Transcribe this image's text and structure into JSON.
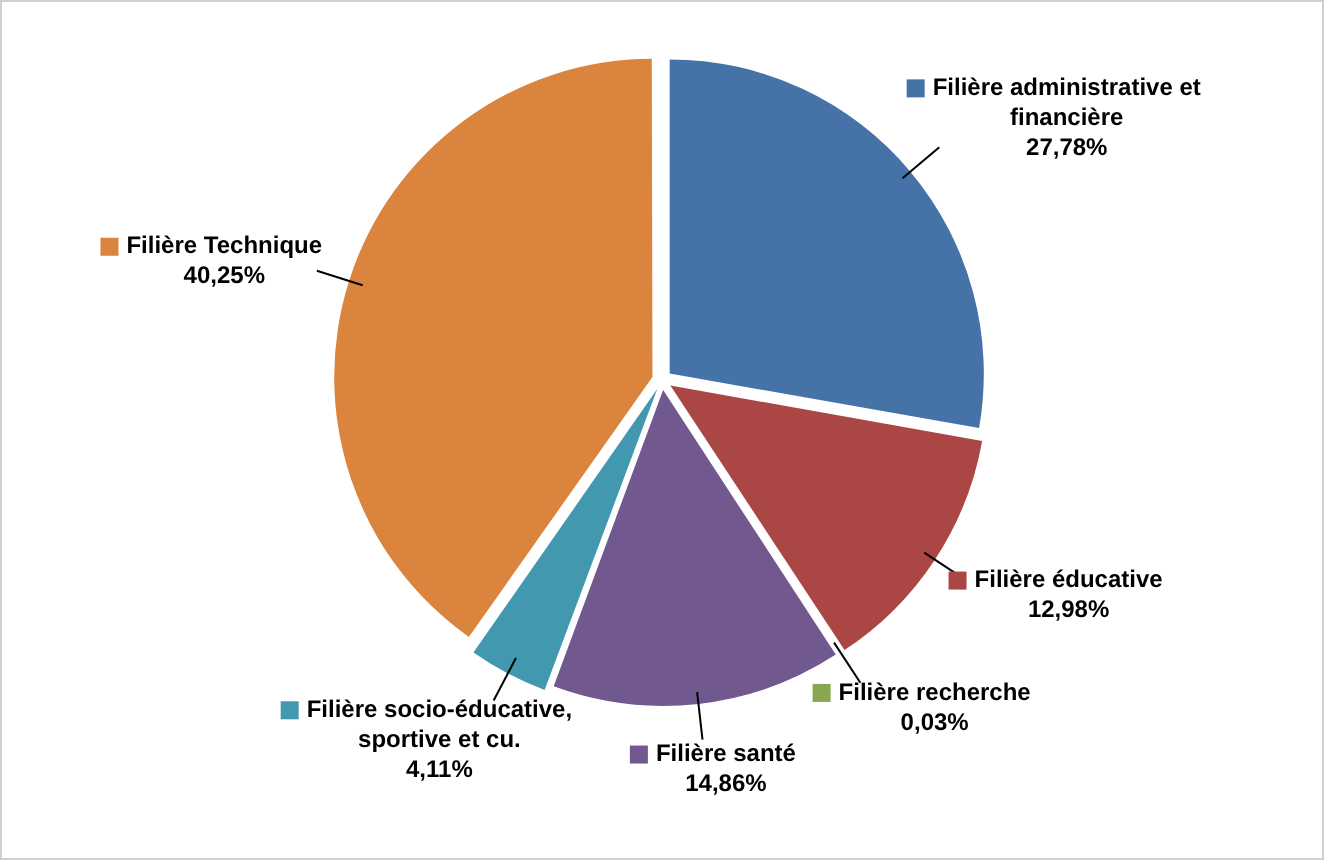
{
  "chart_data": {
    "type": "pie",
    "categories": [
      "Filière administrative et financière",
      "Filière éducative",
      "Filière recherche",
      "Filière santé",
      "Filière socio-éducative, sportive et cu.",
      "Filière Technique"
    ],
    "values": [
      27.78,
      12.98,
      0.03,
      14.86,
      4.11,
      40.25
    ],
    "value_labels": [
      "27,78%",
      "12,98%",
      "0,03%",
      "14,86%",
      "4,11%",
      "40,25%"
    ],
    "colors": [
      "#4572a7",
      "#aa4643",
      "#89a54e",
      "#71588f",
      "#4198af",
      "#db843d"
    ],
    "legend": "right"
  }
}
